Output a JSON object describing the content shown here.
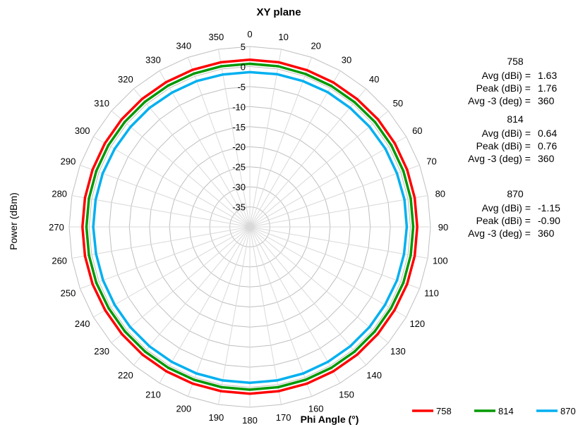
{
  "chart_data": {
    "type": "polar-line",
    "title": "XY plane",
    "xlabel": "Phi  Angle (°)",
    "ylabel": "Power (dBm)",
    "r_ticks": [
      "5",
      "0",
      "-5",
      "-10",
      "-15",
      "-20",
      "-25",
      "-30",
      "-35"
    ],
    "r_range": [
      -40,
      5
    ],
    "angle_ticks": [
      "0",
      "10",
      "20",
      "30",
      "40",
      "50",
      "60",
      "70",
      "80",
      "90",
      "100",
      "110",
      "120",
      "130",
      "140",
      "150",
      "160",
      "170",
      "180",
      "190",
      "200",
      "210",
      "220",
      "230",
      "240",
      "250",
      "260",
      "270",
      "280",
      "290",
      "300",
      "310",
      "320",
      "330",
      "340",
      "350"
    ],
    "grid": true,
    "legend_position": "bottom-right",
    "series": [
      {
        "name": "758",
        "color": "#ff0000",
        "phi": [
          0,
          10,
          20,
          30,
          40,
          50,
          60,
          70,
          80,
          90,
          100,
          110,
          120,
          130,
          140,
          150,
          160,
          170,
          180,
          190,
          200,
          210,
          220,
          230,
          240,
          250,
          260,
          270,
          280,
          290,
          300,
          310,
          320,
          330,
          340,
          350
        ],
        "values": [
          1.7,
          1.7,
          1.6,
          1.6,
          1.6,
          1.7,
          1.7,
          1.7,
          1.7,
          1.7,
          1.7,
          1.7,
          1.6,
          1.6,
          1.6,
          1.6,
          1.6,
          1.6,
          1.6,
          1.6,
          1.6,
          1.6,
          1.6,
          1.6,
          1.6,
          1.7,
          1.7,
          1.7,
          1.7,
          1.7,
          1.7,
          1.7,
          1.7,
          1.7,
          1.7,
          1.7
        ]
      },
      {
        "name": "814",
        "color": "#009900",
        "phi": [
          0,
          10,
          20,
          30,
          40,
          50,
          60,
          70,
          80,
          90,
          100,
          110,
          120,
          130,
          140,
          150,
          160,
          170,
          180,
          190,
          200,
          210,
          220,
          230,
          240,
          250,
          260,
          270,
          280,
          290,
          300,
          310,
          320,
          330,
          340,
          350
        ],
        "values": [
          0.7,
          0.7,
          0.6,
          0.6,
          0.6,
          0.7,
          0.7,
          0.7,
          0.7,
          0.7,
          0.7,
          0.7,
          0.6,
          0.6,
          0.6,
          0.6,
          0.6,
          0.6,
          0.6,
          0.6,
          0.6,
          0.6,
          0.6,
          0.6,
          0.6,
          0.7,
          0.7,
          0.7,
          0.7,
          0.7,
          0.7,
          0.7,
          0.7,
          0.7,
          0.7,
          0.7
        ]
      },
      {
        "name": "870",
        "color": "#00b0f0",
        "phi": [
          0,
          10,
          20,
          30,
          40,
          50,
          60,
          70,
          80,
          90,
          100,
          110,
          120,
          130,
          140,
          150,
          160,
          170,
          180,
          190,
          200,
          210,
          220,
          230,
          240,
          250,
          260,
          270,
          280,
          290,
          300,
          310,
          320,
          330,
          340,
          350
        ],
        "values": [
          -1.4,
          -1.3,
          -1.3,
          -1.2,
          -1.2,
          -1.1,
          -1.0,
          -1.0,
          -0.9,
          -0.9,
          -1.0,
          -1.0,
          -1.1,
          -1.1,
          -1.1,
          -1.1,
          -1.1,
          -1.1,
          -1.1,
          -1.1,
          -1.1,
          -1.1,
          -1.1,
          -1.1,
          -1.1,
          -1.1,
          -1.1,
          -1.0,
          -1.0,
          -1.0,
          -1.1,
          -1.2,
          -1.2,
          -1.3,
          -1.3,
          -1.4
        ]
      }
    ],
    "annotations": [
      {
        "name": "758",
        "lines": [
          {
            "label": "Avg (dBi) =",
            "value": "1.63"
          },
          {
            "label": "Peak (dBi) =",
            "value": "1.76"
          },
          {
            "label": "Avg -3 (deg) =",
            "value": "360"
          }
        ]
      },
      {
        "name": "814",
        "lines": [
          {
            "label": "Avg (dBi) =",
            "value": "0.64"
          },
          {
            "label": "Peak (dBi) =",
            "value": "0.76"
          },
          {
            "label": "Avg -3 (deg) =",
            "value": "360"
          }
        ]
      },
      {
        "name": "870",
        "lines": [
          {
            "label": "Avg (dBi) =",
            "value": "-1.15"
          },
          {
            "label": "Peak (dBi) =",
            "value": "-0.90"
          },
          {
            "label": "Avg -3 (deg) =",
            "value": "360"
          }
        ]
      }
    ]
  }
}
